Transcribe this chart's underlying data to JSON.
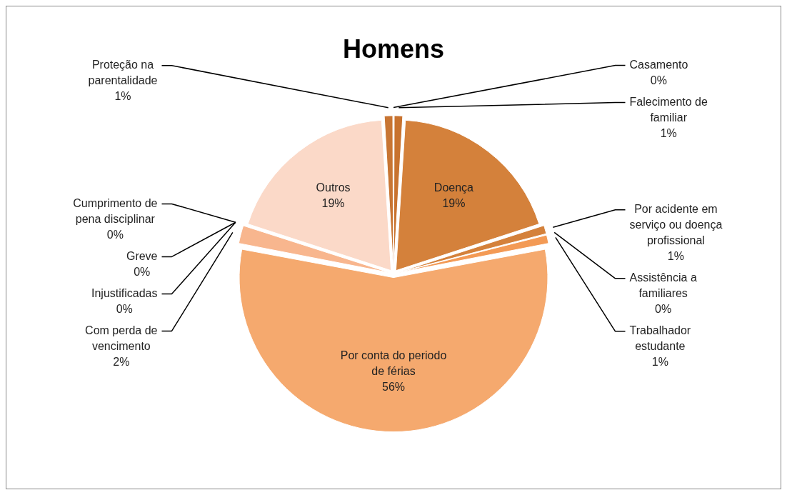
{
  "chart_data": {
    "type": "pie",
    "title": "Homens",
    "categories": [
      "Casamento",
      "Falecimento de familiar",
      "Doença",
      "Por acidente em serviço ou doença profissional",
      "Assistência a familiares",
      "Trabalhador estudante",
      "Por conta do periodo de férias",
      "Com perda de vencimento",
      "Cumprimento de pena disciplinar",
      "Greve",
      "Injustificadas",
      "Outros",
      "Proteção na parentalidade"
    ],
    "values": [
      0,
      1,
      19,
      1,
      0,
      1,
      56,
      2,
      0,
      0,
      0,
      19,
      1
    ],
    "value_labels": [
      "0%",
      "1%",
      "19%",
      "1%",
      "0%",
      "1%",
      "56%",
      "2%",
      "0%",
      "0%",
      "0%",
      "19%",
      "1%"
    ],
    "colors": [
      "#c8722e",
      "#c8722e",
      "#d4813b",
      "#d4813b",
      "#f7c4a2",
      "#f39a55",
      "#f5a96e",
      "#f8b68e",
      "#f5a96e",
      "#d4813b",
      "#f8b68e",
      "#fbd9c8",
      "#c87533"
    ],
    "legend": false
  }
}
